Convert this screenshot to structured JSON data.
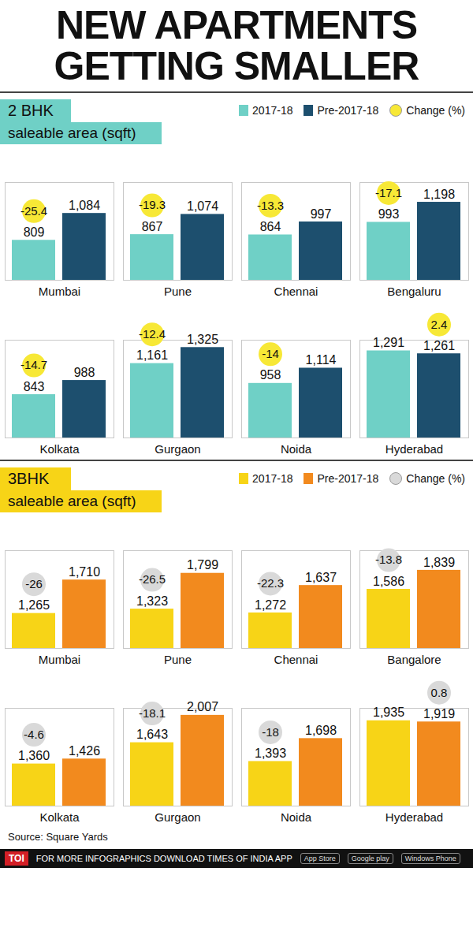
{
  "title": "NEW APARTMENTS GETTING SMALLER",
  "source": "Source: Square Yards",
  "footer": {
    "brand": "TOI",
    "text": "FOR MORE INFOGRAPHICS DOWNLOAD TIMES OF INDIA APP",
    "badges": [
      "App Store",
      "Google play",
      "Windows Phone"
    ]
  },
  "chart_data": [
    {
      "type": "bar",
      "title": "2 BHK",
      "subtitle": "saleable area (sqft)",
      "categories": [
        "Mumbai",
        "Pune",
        "Chennai",
        "Bengaluru",
        "Kolkata",
        "Gurgaon",
        "Noida",
        "Hyderabad"
      ],
      "series": [
        {
          "name": "2017-18",
          "color": "#6fd0c6",
          "values": [
            809,
            867,
            864,
            993,
            843,
            1161,
            958,
            1291
          ],
          "value_labels": [
            "809",
            "867",
            "864",
            "993",
            "843",
            "1,161",
            "958",
            "1,291"
          ]
        },
        {
          "name": "Pre-2017-18",
          "color": "#1d4f6e",
          "values": [
            1084,
            1074,
            997,
            1198,
            988,
            1325,
            1114,
            1261
          ],
          "value_labels": [
            "1,084",
            "1,074",
            "997",
            "1,198",
            "988",
            "1,325",
            "1,114",
            "1,261"
          ]
        }
      ],
      "change": {
        "name": "Change (%)",
        "color": "#f7e836",
        "values": [
          -25.4,
          -19.3,
          -13.3,
          -17.1,
          -14.7,
          -12.4,
          -14,
          2.4
        ]
      },
      "ylim": [
        400,
        1400
      ],
      "tick_labels": false,
      "data_labels": true
    },
    {
      "type": "bar",
      "title": "3BHK",
      "subtitle": "saleable area (sqft)",
      "categories": [
        "Mumbai",
        "Pune",
        "Chennai",
        "Bangalore",
        "Kolkata",
        "Gurgaon",
        "Noida",
        "Hyderabad"
      ],
      "series": [
        {
          "name": "2017-18",
          "color": "#f7d417",
          "values": [
            1265,
            1323,
            1272,
            1586,
            1360,
            1643,
            1393,
            1935
          ],
          "value_labels": [
            "1,265",
            "1,323",
            "1,272",
            "1,586",
            "1,360",
            "1,643",
            "1,393",
            "1,935"
          ]
        },
        {
          "name": "Pre-2017-18",
          "color": "#f28a1e",
          "values": [
            1710,
            1799,
            1637,
            1839,
            1426,
            2007,
            1698,
            1919
          ],
          "value_labels": [
            "1,710",
            "1,799",
            "1,637",
            "1,839",
            "1,426",
            "2,007",
            "1,698",
            "1,919"
          ]
        }
      ],
      "change": {
        "name": "Change (%)",
        "color": "#d9d9d9",
        "values": [
          -26,
          -26.5,
          -22.3,
          -13.8,
          -4.6,
          -18.1,
          -18,
          0.8
        ]
      },
      "ylim": [
        800,
        2100
      ],
      "tick_labels": false,
      "data_labels": true
    }
  ]
}
